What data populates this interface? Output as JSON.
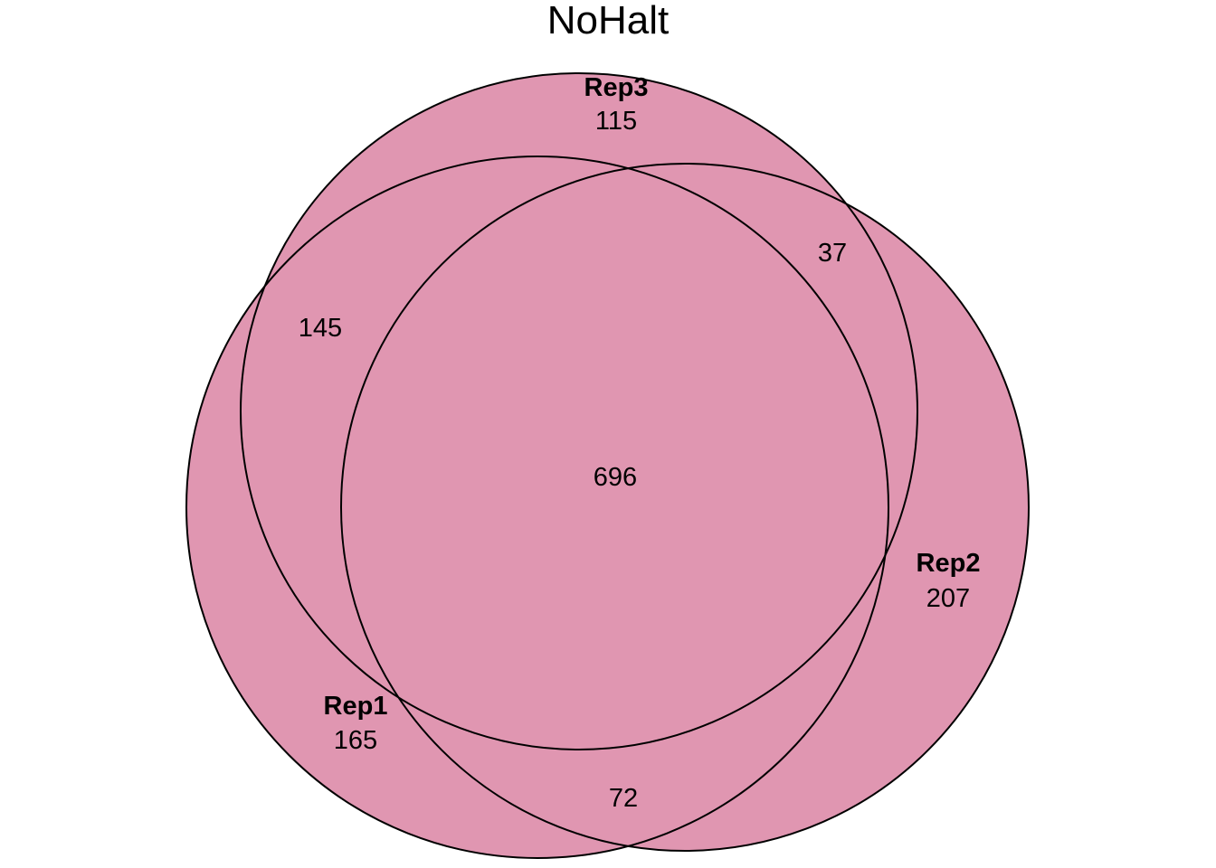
{
  "chart_data": {
    "type": "venn",
    "title": "NoHalt",
    "colors": {
      "fill": "#D1648C",
      "stroke": "#000000"
    },
    "sets": [
      {
        "key": "rep1",
        "name": "Rep1",
        "unique": 165
      },
      {
        "key": "rep2",
        "name": "Rep2",
        "unique": 207
      },
      {
        "key": "rep3",
        "name": "Rep3",
        "unique": 115
      }
    ],
    "intersections": {
      "rep1_rep3": 145,
      "rep2_rep3": 37,
      "rep1_rep2": 72,
      "all": 696
    }
  }
}
